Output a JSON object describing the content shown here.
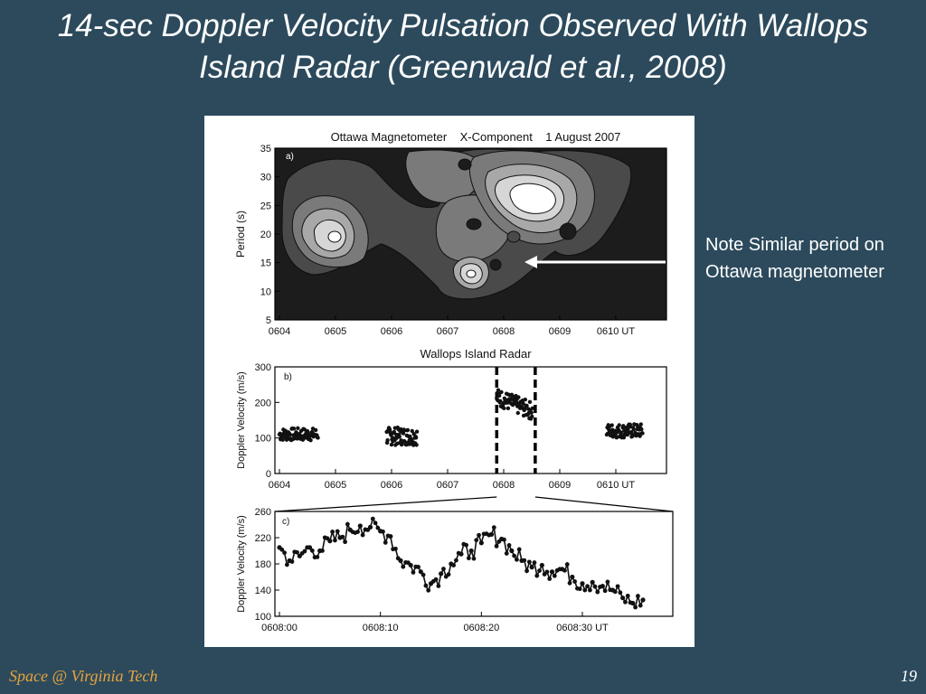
{
  "slide": {
    "title": "14-sec Doppler Velocity Pulsation Observed With Wallops Island Radar (Greenwald et al., 2008)",
    "note": "Note Similar period on Ottawa magnetometer",
    "footer": "Space @ Virginia Tech",
    "page_number": "19"
  },
  "chart_data": [
    {
      "type": "heatmap",
      "panel_label": "a)",
      "title": "Ottawa Magnetometer    X-Component    1 August 2007",
      "ylabel": "Period (s)",
      "ylim": [
        5,
        35
      ],
      "yticks": [
        "5",
        "10",
        "15",
        "20",
        "25",
        "30",
        "35"
      ],
      "xticks": [
        "0604",
        "0605",
        "0606",
        "0607",
        "0608",
        "0609",
        "0610 UT"
      ],
      "colors": {
        "background": "#1c1c1c",
        "levels": [
          "#4a4a4a",
          "#7a7a7a",
          "#a8a8a8",
          "#d6d6d6",
          "#ffffff"
        ]
      },
      "peaks": [
        {
          "time": "0605:05",
          "period_s": 19.5,
          "level": 5
        },
        {
          "time": "0608:33",
          "period_s": 26,
          "level": 5
        },
        {
          "time": "0607:29",
          "period_s": 13.5,
          "level": 4
        },
        {
          "time": "0606:10",
          "period_s": 27,
          "level": 2
        }
      ]
    },
    {
      "type": "scatter",
      "panel_label": "b)",
      "title": "Wallops Island Radar",
      "ylabel": "Doppler Velocity (m/s)",
      "ylim": [
        0,
        300
      ],
      "yticks": [
        "0",
        "100",
        "200",
        "300"
      ],
      "xticks": [
        "0604",
        "0605",
        "0606",
        "0607",
        "0608",
        "0609",
        "0610 UT"
      ],
      "x_unit": "minutes after 0604 UT",
      "highlight_window": [
        3.95,
        4.65
      ],
      "clusters": [
        {
          "x_range": [
            0,
            0.7
          ],
          "mean": 110,
          "spread": 18
        },
        {
          "x_range": [
            1.95,
            2.5
          ],
          "mean": 105,
          "spread": 25
        },
        {
          "x_range": [
            3.95,
            4.6
          ],
          "mean": 185,
          "spread": 25
        },
        {
          "x_range": [
            5.95,
            6.6
          ],
          "mean": 120,
          "spread": 20
        }
      ]
    },
    {
      "type": "line",
      "panel_label": "c)",
      "ylabel": "Doppler Velocity (m/s)",
      "ylim": [
        100,
        260
      ],
      "xlim": [
        0,
        40
      ],
      "x_unit": "seconds after 0608:00 UT",
      "yticks": [
        "100",
        "140",
        "180",
        "220",
        "260"
      ],
      "xticks": [
        "0608:00",
        "0608:10",
        "0608:20",
        "0608:30 UT"
      ],
      "x": [
        0,
        1,
        2,
        3,
        4,
        5,
        6,
        7,
        8,
        9,
        10,
        11,
        12,
        13,
        14,
        15,
        16,
        17,
        18,
        19,
        20,
        21,
        22,
        23,
        24,
        25,
        26,
        27,
        28,
        29,
        30,
        31,
        32,
        33,
        34,
        35,
        36
      ],
      "values": [
        205,
        185,
        192,
        205,
        200,
        215,
        220,
        232,
        238,
        236,
        230,
        222,
        185,
        178,
        168,
        150,
        165,
        180,
        195,
        200,
        212,
        225,
        218,
        200,
        185,
        175,
        178,
        168,
        172,
        160,
        150,
        152,
        146,
        140,
        128,
        120,
        125
      ]
    }
  ]
}
